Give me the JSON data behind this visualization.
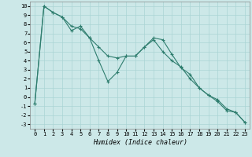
{
  "xlabel": "Humidex (Indice chaleur)",
  "background_color": "#cce8e8",
  "line_color": "#2e7d6e",
  "xlim": [
    -0.5,
    23.5
  ],
  "ylim": [
    -3.5,
    10.5
  ],
  "xticks": [
    0,
    1,
    2,
    3,
    4,
    5,
    6,
    7,
    8,
    9,
    10,
    11,
    12,
    13,
    14,
    15,
    16,
    17,
    18,
    19,
    20,
    21,
    22,
    23
  ],
  "yticks": [
    -3,
    -2,
    -1,
    0,
    1,
    2,
    3,
    4,
    5,
    6,
    7,
    8,
    9,
    10
  ],
  "line1_x": [
    0,
    1,
    2,
    3,
    4,
    5,
    6,
    7,
    8,
    9,
    10,
    11,
    12,
    13,
    14,
    15,
    16,
    17,
    18,
    19,
    20,
    21,
    22,
    23
  ],
  "line1_y": [
    -0.7,
    10.0,
    9.3,
    8.8,
    7.3,
    7.8,
    6.5,
    4.0,
    1.7,
    2.7,
    4.5,
    4.5,
    5.5,
    6.5,
    6.3,
    4.7,
    3.2,
    2.5,
    1.0,
    0.2,
    -0.5,
    -1.5,
    -1.7,
    -2.8
  ],
  "line2_x": [
    0,
    1,
    2,
    3,
    4,
    5,
    6,
    7,
    8,
    9,
    10,
    11,
    12,
    13,
    14,
    15,
    16,
    17,
    18,
    19,
    20,
    21,
    22,
    23
  ],
  "line2_y": [
    -0.7,
    10.0,
    9.3,
    8.8,
    7.8,
    7.5,
    6.5,
    5.5,
    4.5,
    4.3,
    4.5,
    4.5,
    5.5,
    6.3,
    5.0,
    4.0,
    3.3,
    2.0,
    1.0,
    0.2,
    -0.3,
    -1.3,
    -1.7,
    -2.8
  ],
  "tick_fontsize": 5.0,
  "xlabel_fontsize": 6.0,
  "grid_color": "#aad4d4",
  "spine_color": "#888888"
}
